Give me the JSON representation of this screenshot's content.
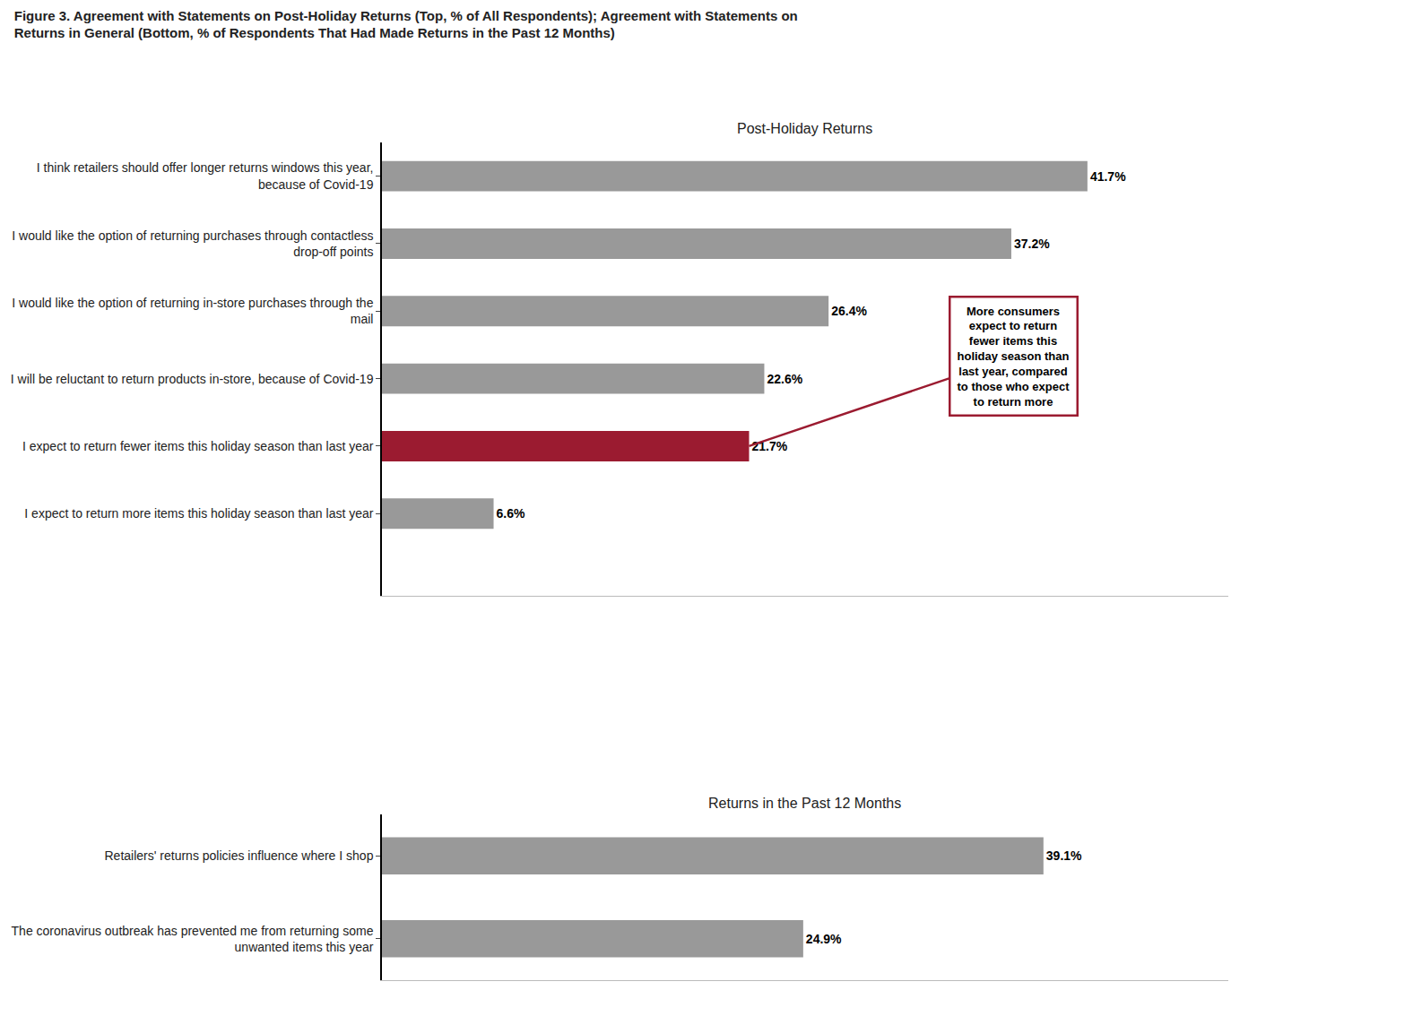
{
  "title": "Figure 3. Agreement with Statements on Post-Holiday Returns (Top, % of All Respondents); Agreement with Statements on\nReturns in General (Bottom, % of Respondents That Had Made Returns in the Past 12 Months)",
  "chart_data": [
    {
      "type": "bar",
      "orientation": "horizontal",
      "subtitle": "Post-Holiday Returns",
      "categories": [
        "I think retailers should offer longer returns windows this year,\nbecause of Covid-19",
        "I would like the option of returning purchases through contactless\ndrop-off points",
        "I would like the option of returning in-store purchases through the\nmail",
        "I will be reluctant to return products in-store, because of Covid-19",
        "I expect to return fewer items this holiday season than last year",
        "I expect to return more items this holiday season than last year"
      ],
      "values": [
        41.7,
        37.2,
        26.4,
        22.6,
        21.7,
        6.6
      ],
      "value_labels": [
        "41.7%",
        "37.2%",
        "26.4%",
        "22.6%",
        "21.7%",
        "6.6%"
      ],
      "colors": [
        "#999999",
        "#999999",
        "#999999",
        "#999999",
        "#9B1B30",
        "#999999"
      ],
      "xlim": [
        0,
        50
      ],
      "grid": false,
      "data_labels": true,
      "tick_labels": "y",
      "annotations": [
        {
          "text": "More consumers\nexpect to return\nfewer items this\nholiday season than\nlast year, compared\nto those who expect\nto return more",
          "category": "I expect to return fewer items this holiday season than last year",
          "color": "#9B1B30"
        }
      ]
    },
    {
      "type": "bar",
      "orientation": "horizontal",
      "subtitle": "Returns in the Past 12 Months",
      "categories": [
        "Retailers' returns policies influence where I shop",
        "The coronavirus outbreak has prevented me from returning some\nunwanted items this year"
      ],
      "values": [
        39.1,
        24.9
      ],
      "value_labels": [
        "39.1%",
        "24.9%"
      ],
      "colors": [
        "#999999",
        "#999999"
      ],
      "xlim": [
        0,
        50
      ],
      "grid": false,
      "data_labels": true,
      "tick_labels": "y"
    }
  ]
}
